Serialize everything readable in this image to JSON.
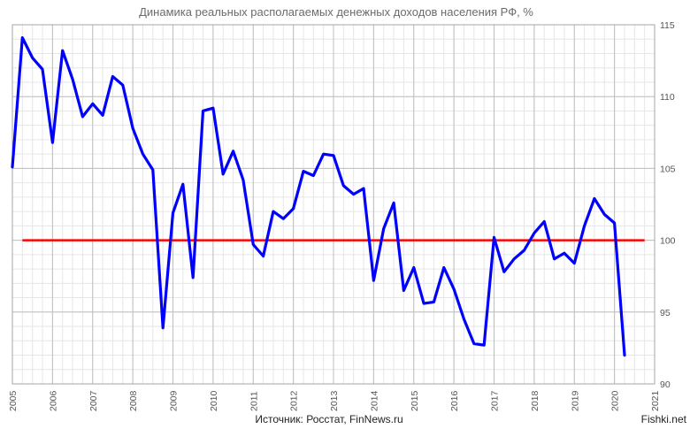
{
  "chart_data": {
    "type": "line",
    "title": "Динамика реальных располагаемых денежных доходов населения РФ, %",
    "source": "Источник: Росстат, FinNews.ru",
    "x_tick_labels": [
      "2005",
      "2006",
      "2007",
      "2008",
      "2009",
      "2010",
      "2011",
      "2012",
      "2013",
      "2014",
      "2015",
      "2016",
      "2017",
      "2018",
      "2019",
      "2020",
      "2021"
    ],
    "xlim": [
      2005,
      2021
    ],
    "y_tick_labels": [
      "90",
      "95",
      "100",
      "105",
      "110",
      "115"
    ],
    "ylim": [
      90,
      115
    ],
    "y_axis_side": "right",
    "grid": true,
    "reference_line": {
      "y": 100,
      "color": "#ff0000"
    },
    "series": [
      {
        "color": "#0000ff",
        "x": [
          2005.0,
          2005.25,
          2005.5,
          2005.75,
          2006.0,
          2006.25,
          2006.5,
          2006.75,
          2007.0,
          2007.25,
          2007.5,
          2007.75,
          2008.0,
          2008.25,
          2008.5,
          2008.75,
          2009.0,
          2009.25,
          2009.5,
          2009.75,
          2010.0,
          2010.25,
          2010.5,
          2010.75,
          2011.0,
          2011.25,
          2011.5,
          2011.75,
          2012.0,
          2012.25,
          2012.5,
          2012.75,
          2013.0,
          2013.25,
          2013.5,
          2013.75,
          2014.0,
          2014.25,
          2014.5,
          2014.75,
          2015.0,
          2015.25,
          2015.5,
          2015.75,
          2016.0,
          2016.25,
          2016.5,
          2016.75,
          2017.0,
          2017.25,
          2017.5,
          2017.75,
          2018.0,
          2018.25,
          2018.5,
          2018.75,
          2019.0,
          2019.25,
          2019.5,
          2019.75,
          2020.0,
          2020.25
        ],
        "values": [
          105.1,
          114.1,
          112.7,
          111.9,
          106.8,
          113.2,
          111.2,
          108.6,
          109.5,
          108.7,
          111.4,
          110.8,
          107.8,
          106.0,
          104.9,
          93.9,
          101.9,
          103.9,
          97.4,
          109.0,
          109.2,
          104.6,
          106.2,
          104.2,
          99.7,
          98.9,
          102.0,
          101.5,
          102.2,
          104.8,
          104.5,
          106.0,
          105.9,
          103.8,
          103.2,
          103.6,
          97.2,
          100.8,
          102.6,
          96.5,
          98.1,
          95.6,
          95.7,
          98.1,
          96.6,
          94.5,
          92.8,
          92.7,
          100.2,
          97.8,
          98.7,
          99.3,
          100.5,
          101.3,
          98.7,
          99.1,
          98.4,
          101.0,
          102.9,
          101.8,
          101.2,
          92.0
        ]
      }
    ]
  },
  "watermark": "Fishki.net"
}
